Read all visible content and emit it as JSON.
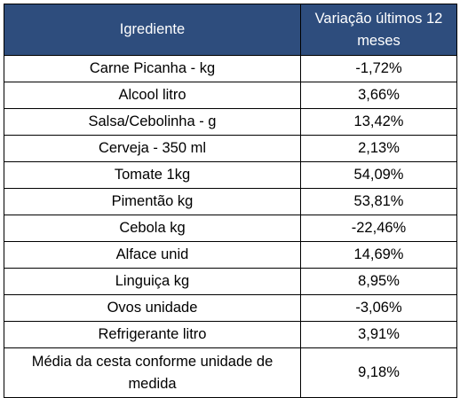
{
  "table": {
    "headers": [
      "Igrediente",
      "Variação últimos 12 meses"
    ],
    "rows": [
      {
        "item": "Carne Picanha - kg",
        "variation": "-1,72%"
      },
      {
        "item": "Alcool litro",
        "variation": "3,66%"
      },
      {
        "item": "Salsa/Cebolinha - g",
        "variation": "13,42%"
      },
      {
        "item": "Cerveja - 350 ml",
        "variation": "2,13%"
      },
      {
        "item": "Tomate 1kg",
        "variation": "54,09%"
      },
      {
        "item": "Pimentão kg",
        "variation": "53,81%"
      },
      {
        "item": "Cebola kg",
        "variation": "-22,46%"
      },
      {
        "item": "Alface unid",
        "variation": "14,69%"
      },
      {
        "item": "Linguiça kg",
        "variation": "8,95%"
      },
      {
        "item": "Ovos unidade",
        "variation": "-3,06%"
      },
      {
        "item": "Refrigerante litro",
        "variation": "3,91%"
      },
      {
        "item": "Média da cesta conforme unidade de medida",
        "variation": "9,18%"
      }
    ]
  },
  "colors": {
    "header_background": "#2e4d7d",
    "header_text": "#ffffff",
    "border": "#000000"
  }
}
